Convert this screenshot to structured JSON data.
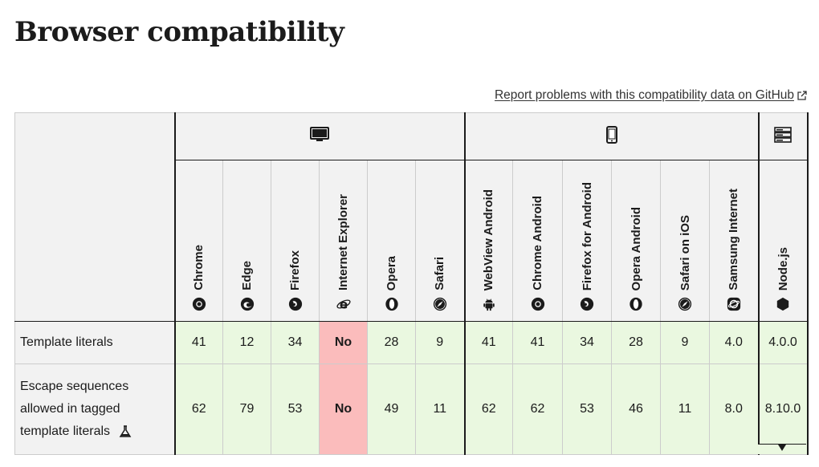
{
  "page": {
    "title": "Browser compatibility",
    "report_link": "Report problems with this compatibility data on GitHub"
  },
  "platforms": [
    {
      "name": "desktop-icon",
      "span": 6
    },
    {
      "name": "mobile-icon",
      "span": 6
    },
    {
      "name": "server-icon",
      "span": 1
    }
  ],
  "browsers": [
    {
      "label": "Chrome",
      "icon": "chrome-icon"
    },
    {
      "label": "Edge",
      "icon": "edge-icon"
    },
    {
      "label": "Firefox",
      "icon": "firefox-icon"
    },
    {
      "label": "Internet Explorer",
      "icon": "internet-explorer-icon"
    },
    {
      "label": "Opera",
      "icon": "opera-icon"
    },
    {
      "label": "Safari",
      "icon": "safari-icon"
    },
    {
      "label": "WebView Android",
      "icon": "android-icon"
    },
    {
      "label": "Chrome Android",
      "icon": "chrome-icon"
    },
    {
      "label": "Firefox for Android",
      "icon": "firefox-icon"
    },
    {
      "label": "Opera Android",
      "icon": "opera-icon"
    },
    {
      "label": "Safari on iOS",
      "icon": "safari-icon"
    },
    {
      "label": "Samsung Internet",
      "icon": "samsung-internet-icon"
    },
    {
      "label": "Node.js",
      "icon": "nodejs-icon"
    }
  ],
  "rows": [
    {
      "feature": "Template literals",
      "values": [
        "41",
        "12",
        "34",
        "No",
        "28",
        "9",
        "41",
        "41",
        "34",
        "28",
        "9",
        "4.0",
        "4.0.0"
      ]
    },
    {
      "feature": "Escape sequences allowed in tagged template literals",
      "experimental": true,
      "values": [
        "62",
        "79",
        "53",
        "No",
        "49",
        "11",
        "62",
        "62",
        "53",
        "46",
        "11",
        "8.0",
        "8.10.0"
      ]
    }
  ],
  "colors": {
    "supported": "#eaf8e0",
    "unsupported": "#fbbcbc"
  }
}
